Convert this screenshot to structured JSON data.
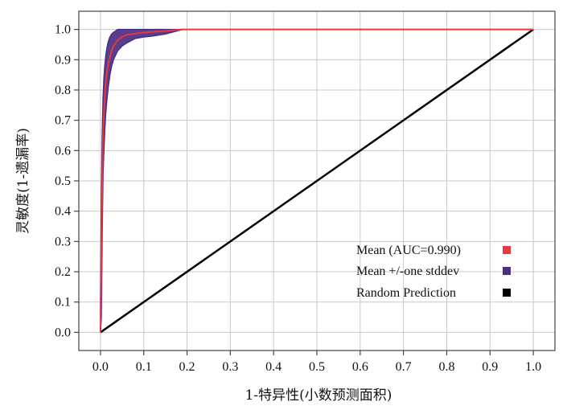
{
  "chart_data": {
    "type": "line",
    "xlabel": "1-特异性(小数预测面积)",
    "ylabel": "灵敏度(1-遗漏率)",
    "xlim": [
      -0.05,
      1.05
    ],
    "ylim": [
      -0.06,
      1.06
    ],
    "x_ticks": [
      "0.0",
      "0.1",
      "0.2",
      "0.3",
      "0.4",
      "0.5",
      "0.6",
      "0.7",
      "0.8",
      "0.9",
      "1.0"
    ],
    "y_ticks": [
      "0.0",
      "0.1",
      "0.2",
      "0.3",
      "0.4",
      "0.5",
      "0.6",
      "0.7",
      "0.8",
      "0.9",
      "1.0"
    ],
    "grid": true,
    "legend_position": "lower-right",
    "series": [
      {
        "name": "Mean (AUC=0.990)",
        "color": "#e8383d",
        "x": [
          0.0,
          0.002,
          0.004,
          0.006,
          0.008,
          0.01,
          0.012,
          0.015,
          0.018,
          0.022,
          0.026,
          0.03,
          0.035,
          0.04,
          0.05,
          0.06,
          0.08,
          0.1,
          0.12,
          0.15,
          0.19,
          1.0
        ],
        "y": [
          0.0,
          0.25,
          0.5,
          0.65,
          0.72,
          0.78,
          0.82,
          0.86,
          0.89,
          0.91,
          0.93,
          0.945,
          0.955,
          0.965,
          0.975,
          0.982,
          0.986,
          0.99,
          0.992,
          0.995,
          1.0,
          1.0
        ]
      },
      {
        "name": "Mean +/-one stddev",
        "color": "#4b2e83",
        "x": [
          0.0,
          0.002,
          0.004,
          0.006,
          0.008,
          0.01,
          0.012,
          0.015,
          0.018,
          0.022,
          0.026,
          0.03,
          0.035,
          0.04,
          0.05,
          0.06,
          0.08,
          0.1,
          0.12,
          0.15,
          0.19
        ],
        "upper": [
          0.1,
          0.45,
          0.65,
          0.77,
          0.84,
          0.88,
          0.91,
          0.94,
          0.96,
          0.975,
          0.985,
          0.99,
          0.995,
          1.0,
          1.0,
          1.0,
          1.0,
          1.0,
          1.0,
          1.0,
          1.0
        ],
        "lower": [
          0.0,
          0.05,
          0.33,
          0.52,
          0.6,
          0.67,
          0.72,
          0.77,
          0.81,
          0.85,
          0.88,
          0.9,
          0.915,
          0.93,
          0.945,
          0.955,
          0.97,
          0.975,
          0.978,
          0.985,
          1.0
        ]
      },
      {
        "name": "Random Prediction",
        "color": "#000000",
        "x": [
          0.0,
          1.0
        ],
        "y": [
          0.0,
          1.0
        ]
      }
    ]
  }
}
